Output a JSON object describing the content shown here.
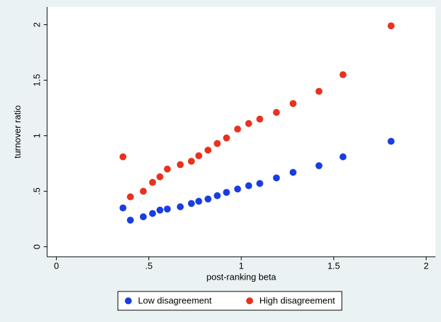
{
  "chart_data": {
    "type": "scatter",
    "x_label": "post-ranking beta",
    "y_label": "turnover ratio",
    "x": [
      0.36,
      0.4,
      0.47,
      0.52,
      0.56,
      0.6,
      0.67,
      0.73,
      0.77,
      0.82,
      0.87,
      0.92,
      0.98,
      1.04,
      1.1,
      1.19,
      1.28,
      1.42,
      1.55,
      1.81
    ],
    "series": [
      {
        "name": "Low disagreement",
        "color": "#1a3de0",
        "values": [
          0.35,
          0.24,
          0.27,
          0.3,
          0.33,
          0.34,
          0.36,
          0.39,
          0.41,
          0.43,
          0.46,
          0.49,
          0.52,
          0.55,
          0.57,
          0.62,
          0.67,
          0.73,
          0.81,
          0.95
        ]
      },
      {
        "name": "High disagreement",
        "color": "#e8321e",
        "values": [
          0.81,
          0.45,
          0.5,
          0.58,
          0.63,
          0.7,
          0.74,
          0.77,
          0.82,
          0.87,
          0.93,
          0.98,
          1.06,
          1.11,
          1.15,
          1.21,
          1.29,
          1.4,
          1.55,
          1.99
        ]
      }
    ],
    "xlim": [
      -0.05,
      2.05
    ],
    "ylim": [
      -0.09,
      2.16
    ],
    "xticks": [
      0,
      {
        "value": 0.5,
        "label": ".5"
      },
      1,
      1.5,
      2
    ],
    "yticks": [
      0,
      {
        "value": 0.5,
        "label": ".5"
      },
      1,
      1.5,
      2
    ],
    "grid": false
  }
}
